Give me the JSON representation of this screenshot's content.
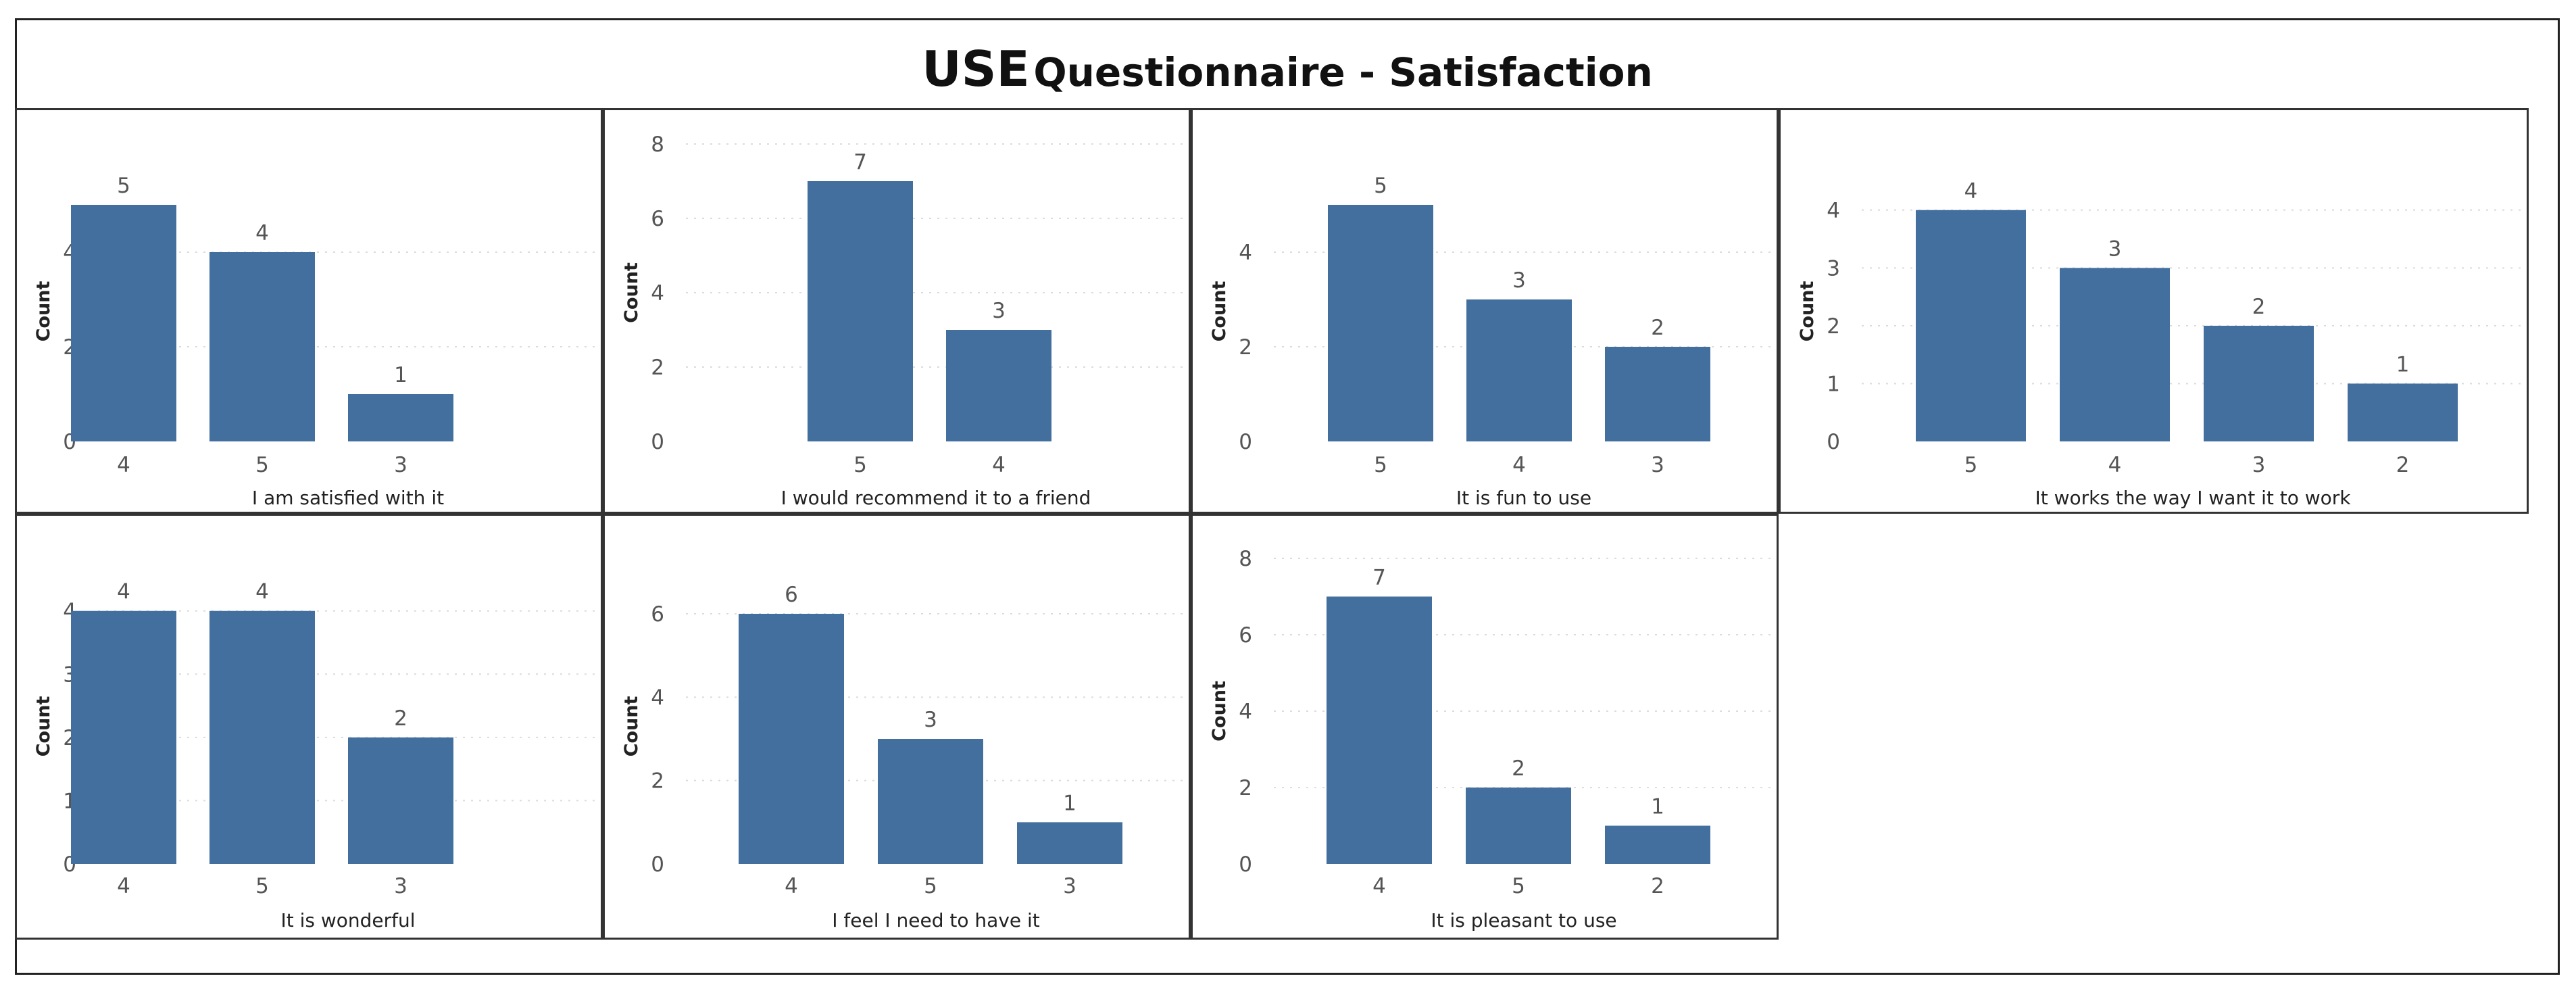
{
  "title": {
    "prefix": "USE",
    "rest": "Questionnaire - Satisfaction"
  },
  "colors": {
    "bar": "#426f9e"
  },
  "chart_data": [
    {
      "type": "bar",
      "xlabel": "I am satisfied with it",
      "ylabel": "Count",
      "categories": [
        "4",
        "5",
        "3"
      ],
      "values": [
        5,
        4,
        1
      ],
      "yticks": [
        0,
        2,
        4
      ],
      "ylim": [
        0,
        5.5
      ]
    },
    {
      "type": "bar",
      "xlabel": "I would recommend it to a friend",
      "ylabel": "Count",
      "categories": [
        "5",
        "4"
      ],
      "values": [
        7,
        3
      ],
      "yticks": [
        0,
        2,
        4,
        6,
        8
      ],
      "ylim": [
        0,
        8
      ]
    },
    {
      "type": "bar",
      "xlabel": "It is fun to use",
      "ylabel": "Count",
      "categories": [
        "5",
        "4",
        "3"
      ],
      "values": [
        5,
        3,
        2
      ],
      "yticks": [
        0,
        2,
        4
      ],
      "ylim": [
        0,
        5.5
      ]
    },
    {
      "type": "bar",
      "xlabel": "It works the way I want it to work",
      "ylabel": "Count",
      "categories": [
        "5",
        "4",
        "3",
        "2"
      ],
      "values": [
        4,
        3,
        2,
        1
      ],
      "yticks": [
        0,
        1,
        2,
        3,
        4
      ],
      "ylim": [
        0,
        4.5
      ]
    },
    {
      "type": "bar",
      "xlabel": "It is wonderful",
      "ylabel": "Count",
      "categories": [
        "4",
        "5",
        "3"
      ],
      "values": [
        4,
        4,
        2
      ],
      "yticks": [
        0,
        1,
        2,
        3,
        4
      ],
      "ylim": [
        0,
        4.35
      ]
    },
    {
      "type": "bar",
      "xlabel": "I feel I need to have it",
      "ylabel": "Count",
      "categories": [
        "4",
        "5",
        "3"
      ],
      "values": [
        6,
        3,
        1
      ],
      "yticks": [
        0,
        2,
        4,
        6
      ],
      "ylim": [
        0,
        6.6
      ]
    },
    {
      "type": "bar",
      "xlabel": "It is pleasant to use",
      "ylabel": "Count",
      "categories": [
        "4",
        "5",
        "2"
      ],
      "values": [
        7,
        2,
        1
      ],
      "yticks": [
        0,
        2,
        4,
        6,
        8
      ],
      "ylim": [
        0,
        8
      ]
    }
  ]
}
